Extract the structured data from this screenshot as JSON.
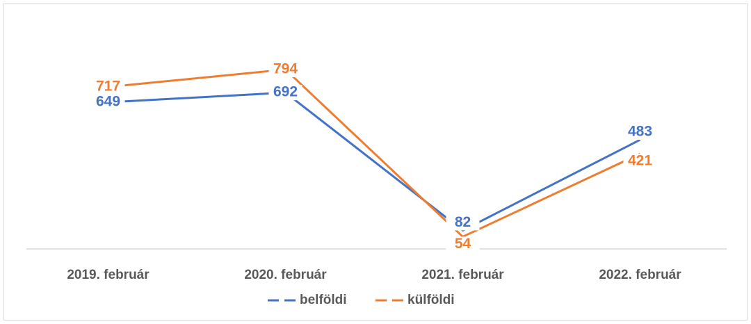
{
  "chart_data": {
    "type": "line",
    "categories": [
      "2019. február",
      "2020. február",
      "2021. február",
      "2022. február"
    ],
    "series": [
      {
        "name": "belföldi",
        "color": "#4472c4",
        "values": [
          649,
          692,
          82,
          483
        ]
      },
      {
        "name": "külföldi",
        "color": "#ed7d31",
        "values": [
          717,
          794,
          54,
          421
        ]
      }
    ],
    "legend": "bottom"
  }
}
